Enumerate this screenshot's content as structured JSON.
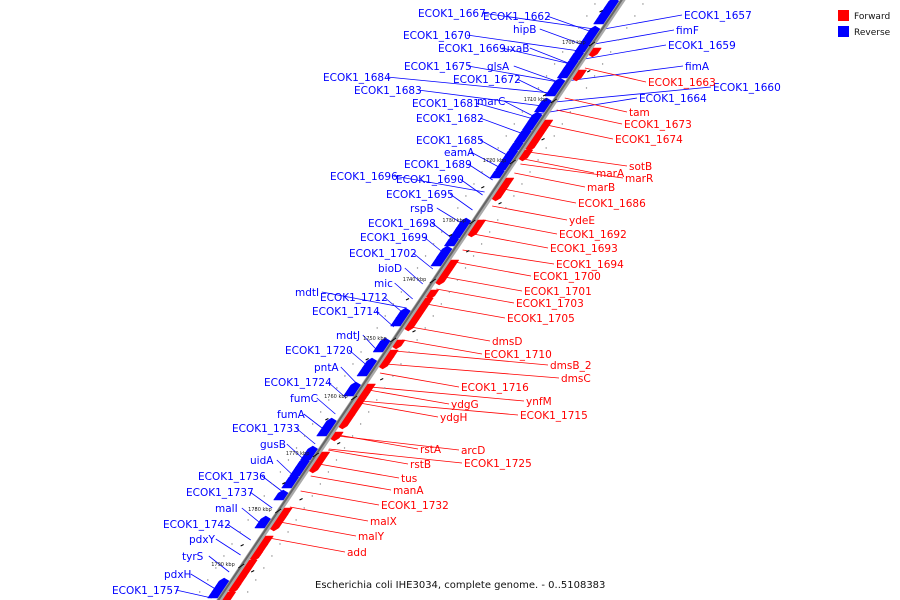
{
  "caption": "Escherichia coli IHE3034, complete genome. - 0..5108383",
  "legend": [
    {
      "label": "Forward",
      "color": "#ff0000"
    },
    {
      "label": "Reverse",
      "color": "#0000ff"
    }
  ],
  "backbone_ticks": [
    "1700 kbp",
    "1710 kbp",
    "1720 kbp",
    "1730 kbp",
    "1740 kbp",
    "1750 kbp",
    "1760 kbp",
    "1770 kbp",
    "1780 kbp",
    "1790 kbp"
  ],
  "reverse_genes": [
    "ECOK1_1657",
    "ECOK1_1667",
    "ECOK1_1662",
    "fimF",
    "ECOK1_1659",
    "ECOK1_1670",
    "hipB",
    "ECOK1_1669",
    "uxaB",
    "fimA",
    "ECOK1_1660",
    "ECOK1_1675",
    "glsA",
    "ECOK1_1672",
    "ECOK1_1684",
    "ECOK1_1683",
    "ECOK1_1664",
    "marC",
    "ECOK1_1681",
    "ECOK1_1682",
    "ECOK1_1685",
    "eamA",
    "ECOK1_1689",
    "ECOK1_1696",
    "ECOK1_1690",
    "ECOK1_1695",
    "rspB",
    "ECOK1_1698",
    "ECOK1_1699",
    "ECOK1_1702",
    "bioD",
    "mic",
    "mdtI",
    "ECOK1_1712",
    "ECOK1_1714",
    "mdtJ",
    "ECOK1_1720",
    "pntA",
    "ECOK1_1724",
    "fumC",
    "fumA",
    "ECOK1_1733",
    "gusB",
    "uidA",
    "ECOK1_1736",
    "ECOK1_1737",
    "malI",
    "ECOK1_1742",
    "pdxY",
    "tyrS",
    "pdxH",
    "ECOK1_1757"
  ],
  "forward_genes": [
    "ECOK1_1663",
    "tam",
    "ECOK1_1673",
    "ECOK1_1674",
    "sotB",
    "marA",
    "marR",
    "marB",
    "ECOK1_1686",
    "ydeE",
    "ECOK1_1692",
    "ECOK1_1693",
    "ECOK1_1694",
    "ECOK1_1700",
    "ECOK1_1701",
    "ECOK1_1703",
    "ECOK1_1705",
    "dmsD",
    "ECOK1_1710",
    "dmsB_2",
    "dmsC",
    "ECOK1_1716",
    "ynfM",
    "ydgG",
    "ECOK1_1715",
    "ydgH",
    "rstA",
    "arcD",
    "rstB",
    "ECOK1_1725",
    "tus",
    "manA",
    "ECOK1_1732",
    "malX",
    "malY",
    "add"
  ]
}
